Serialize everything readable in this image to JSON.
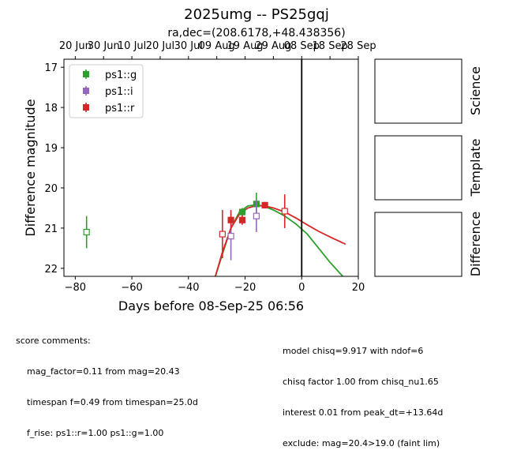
{
  "title": "2025umg -- PS25gqj",
  "subtitle": "ra,dec=(208.6178,+48.438356)",
  "colors": {
    "g": "#2ca02c",
    "i": "#9467bd",
    "r": "#d62728"
  },
  "panels": [
    "Science",
    "Template",
    "Difference"
  ],
  "footer_left": {
    "heading": "score comments:",
    "lines": [
      "mag_factor=0.11 from mag=20.43",
      "timespan f=0.49 from timespan=25.0d",
      "f_rise: ps1::r=1.00 ps1::g=1.00"
    ]
  },
  "footer_right": {
    "lines": [
      "model chisq=9.917 with ndof=6",
      "chisq factor 1.00 from chisq_nu1.65",
      "interest 0.01 from peak_dt=+13.64d",
      "exclude: mag=20.4>19.0 (faint lim)"
    ]
  },
  "chart_data": {
    "type": "scatter",
    "xlabel": "Days before 08-Sep-25 06:56",
    "ylabel": "Difference magnitude",
    "xlim": [
      -84,
      20
    ],
    "ylim": [
      22.2,
      16.8
    ],
    "x_ticks": [
      -80,
      -60,
      -40,
      -20,
      0,
      20
    ],
    "y_ticks": [
      17,
      18,
      19,
      20,
      21,
      22
    ],
    "top_axis_ticks": [
      {
        "x": -80,
        "label": "20 Jun"
      },
      {
        "x": -70,
        "label": "30 Jun"
      },
      {
        "x": -60,
        "label": "10 Jul"
      },
      {
        "x": -50,
        "label": "20 Jul"
      },
      {
        "x": -40,
        "label": "30 Jul"
      },
      {
        "x": -30,
        "label": "09 Aug"
      },
      {
        "x": -20,
        "label": "19 Aug"
      },
      {
        "x": -10,
        "label": "29 Aug"
      },
      {
        "x": 0,
        "label": "08 Sep"
      },
      {
        "x": 10,
        "label": "18 Sep"
      },
      {
        "x": 20,
        "label": "28 Sep"
      }
    ],
    "vline_x": 0,
    "legend": {
      "location": "upper-left",
      "entries": [
        "ps1::g",
        "ps1::i",
        "ps1::r"
      ]
    },
    "series": [
      {
        "name": "ps1::g",
        "key": "g",
        "points": [
          {
            "x": -76,
            "y": 21.1,
            "err": 0.4,
            "filled": false
          },
          {
            "x": -21,
            "y": 20.6,
            "err": 0.1,
            "filled": true
          },
          {
            "x": -16,
            "y": 20.4,
            "err": 0.28,
            "filled": true
          }
        ]
      },
      {
        "name": "ps1::i",
        "key": "i",
        "points": [
          {
            "x": -25,
            "y": 21.2,
            "err": 0.6,
            "filled": false
          },
          {
            "x": -16,
            "y": 20.7,
            "err": 0.4,
            "filled": false
          }
        ]
      },
      {
        "name": "ps1::r",
        "key": "r",
        "points": [
          {
            "x": -28,
            "y": 21.15,
            "err": 0.6,
            "filled": false
          },
          {
            "x": -25,
            "y": 20.8,
            "err": 0.25,
            "filled": true
          },
          {
            "x": -21,
            "y": 20.8,
            "err": 0.12,
            "filled": true
          },
          {
            "x": -13,
            "y": 20.43,
            "err": 0.08,
            "filled": true
          },
          {
            "x": -6,
            "y": 20.58,
            "err": 0.42,
            "filled": false
          }
        ]
      }
    ],
    "models": [
      {
        "key": "g",
        "points": [
          [
            -30.5,
            22.2
          ],
          [
            -28,
            21.65
          ],
          [
            -25,
            21.0
          ],
          [
            -22,
            20.6
          ],
          [
            -19,
            20.45
          ],
          [
            -16,
            20.42
          ],
          [
            -13,
            20.46
          ],
          [
            -10,
            20.55
          ],
          [
            -6,
            20.7
          ],
          [
            -2,
            20.9
          ],
          [
            2,
            21.15
          ],
          [
            6,
            21.5
          ],
          [
            10,
            21.85
          ],
          [
            14.5,
            22.2
          ]
        ]
      },
      {
        "key": "r",
        "points": [
          [
            -30.5,
            22.2
          ],
          [
            -28,
            21.6
          ],
          [
            -25,
            21.0
          ],
          [
            -22,
            20.65
          ],
          [
            -19,
            20.5
          ],
          [
            -16,
            20.44
          ],
          [
            -13,
            20.45
          ],
          [
            -10,
            20.5
          ],
          [
            -6,
            20.6
          ],
          [
            -2,
            20.75
          ],
          [
            2,
            20.92
          ],
          [
            6,
            21.08
          ],
          [
            10,
            21.22
          ],
          [
            15.5,
            21.4
          ]
        ]
      }
    ]
  }
}
